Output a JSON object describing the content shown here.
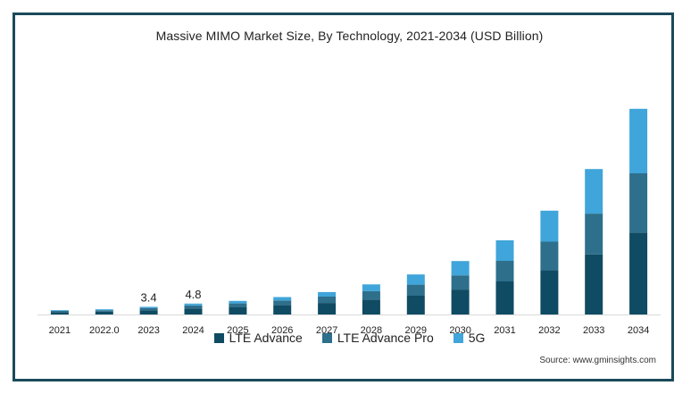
{
  "chart_data": {
    "type": "bar",
    "stacked": true,
    "title": "Massive MIMO Market Size, By Technology, 2021-2034 (USD Billion)",
    "categories": [
      "2021",
      "2022.0",
      "2023",
      "2024",
      "2025",
      "2026",
      "2027",
      "2028",
      "2029",
      "2030",
      "2031",
      "2032",
      "2033",
      "2034"
    ],
    "series": [
      {
        "name": "LTE Advance",
        "color": "#0f4b63",
        "values": [
          1.0,
          1.3,
          1.9,
          2.7,
          3.3,
          4.1,
          5.1,
          6.6,
          8.3,
          11.0,
          14.6,
          19.6,
          26.5,
          36.2
        ]
      },
      {
        "name": "LTE Advance Pro",
        "color": "#2e6f8c",
        "values": [
          0.6,
          0.6,
          1.0,
          1.3,
          1.6,
          2.1,
          2.8,
          3.7,
          4.9,
          6.3,
          9.1,
          12.6,
          18.1,
          26.2
        ]
      },
      {
        "name": "5G",
        "color": "#3fa5da",
        "values": [
          0.3,
          0.4,
          0.5,
          0.8,
          1.1,
          1.5,
          2.0,
          3.0,
          4.5,
          6.3,
          9.1,
          13.7,
          19.7,
          28.5
        ]
      }
    ],
    "data_labels": [
      {
        "category": "2023",
        "text": "3.4"
      },
      {
        "category": "2024",
        "text": "4.8"
      }
    ],
    "ylim": [
      0,
      94
    ],
    "grid": false,
    "legend_position": "bottom",
    "source": "Source: www.gminsights.com"
  }
}
